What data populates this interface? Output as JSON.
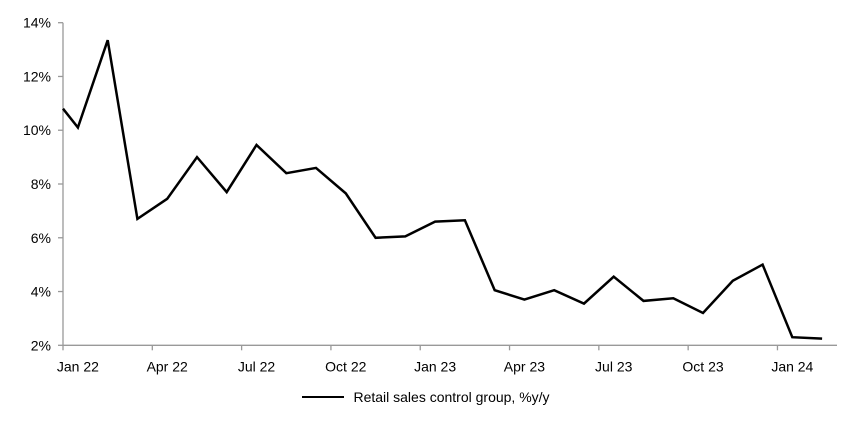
{
  "chart_data": {
    "type": "line",
    "title": "",
    "legend_position": "bottom",
    "categories": [
      "Jan 22",
      "Feb 22",
      "Mar 22",
      "Apr 22",
      "May 22",
      "Jun 22",
      "Jul 22",
      "Aug 22",
      "Sep 22",
      "Oct 22",
      "Nov 22",
      "Dec 22",
      "Jan 23",
      "Feb 23",
      "Mar 23",
      "Apr 23",
      "May 23",
      "Jun 23",
      "Jul 23",
      "Aug 23",
      "Sep 23",
      "Oct 23",
      "Nov 23",
      "Dec 23",
      "Jan 24",
      "Feb 24"
    ],
    "series": [
      {
        "name": "Retail sales control group, %y/y",
        "values": [
          10.1,
          13.35,
          6.7,
          7.45,
          9.0,
          7.7,
          9.45,
          8.4,
          8.6,
          7.65,
          6.0,
          6.05,
          6.6,
          6.65,
          4.05,
          3.7,
          4.05,
          3.55,
          4.55,
          3.65,
          3.75,
          3.2,
          4.4,
          5.0,
          2.3,
          2.25
        ]
      }
    ],
    "left_edge_clipped_value": 10.8,
    "x_tick_labels": [
      "Jan 22",
      "Apr 22",
      "Jul 22",
      "Oct 22",
      "Jan 23",
      "Apr 23",
      "Jul 23",
      "Oct 23",
      "Jan 24"
    ],
    "x_tick_label_interval": 3,
    "y_ticks": [
      2,
      4,
      6,
      8,
      10,
      12,
      14
    ],
    "y_tick_suffix": "%",
    "ylim": [
      2,
      14
    ],
    "grid": false,
    "colors": {
      "line": "#000000",
      "axis": "#999999",
      "text": "#000000",
      "background": "#ffffff"
    }
  }
}
